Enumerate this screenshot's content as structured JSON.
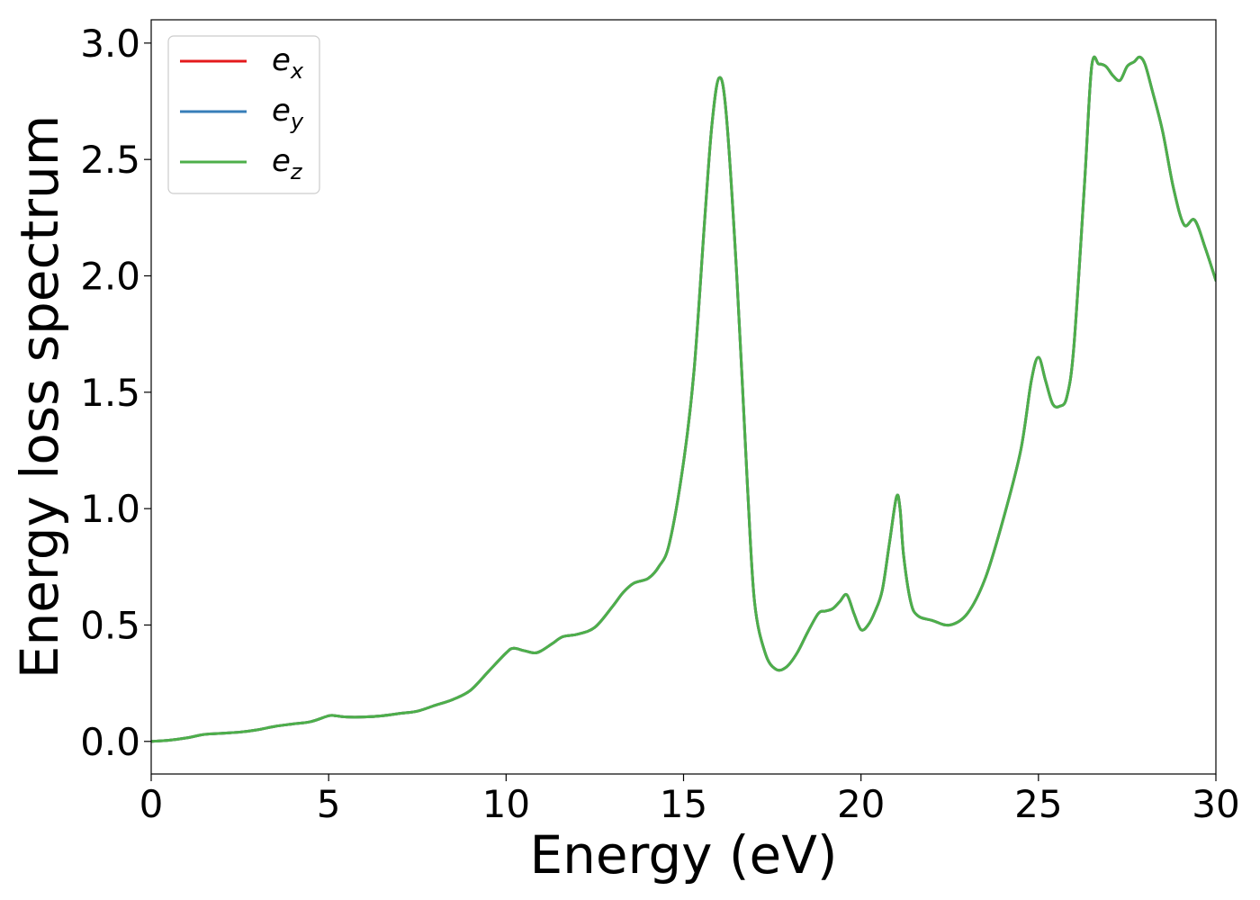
{
  "chart_data": {
    "type": "line",
    "xlabel": "Energy (eV)",
    "ylabel": "Energy loss spectrum",
    "xlim": [
      0,
      30
    ],
    "ylim": [
      -0.14,
      3.1
    ],
    "xticks": [
      0,
      5,
      10,
      15,
      20,
      25,
      30
    ],
    "xtick_labels": [
      "0",
      "5",
      "10",
      "15",
      "20",
      "25",
      "30"
    ],
    "yticks": [
      0.0,
      0.5,
      1.0,
      1.5,
      2.0,
      2.5,
      3.0
    ],
    "ytick_labels": [
      "0.0",
      "0.5",
      "1.0",
      "1.5",
      "2.0",
      "2.5",
      "3.0"
    ],
    "grid": false,
    "legend_position": "top-left",
    "x": [
      0,
      0.5,
      1,
      1.5,
      2,
      2.5,
      3,
      3.5,
      4,
      4.5,
      5,
      5.2,
      5.5,
      6,
      6.5,
      7,
      7.5,
      8,
      8.5,
      9,
      9.5,
      10,
      10.2,
      10.5,
      10.8,
      11,
      11.3,
      11.6,
      12,
      12.5,
      13,
      13.3,
      13.6,
      14,
      14.3,
      14.6,
      15,
      15.3,
      15.6,
      15.8,
      16,
      16.2,
      16.5,
      16.8,
      17,
      17.3,
      17.6,
      17.9,
      18.2,
      18.5,
      18.8,
      19,
      19.2,
      19.4,
      19.6,
      19.8,
      20,
      20.2,
      20.4,
      20.6,
      20.8,
      21,
      21.1,
      21.2,
      21.4,
      21.6,
      22,
      22.5,
      23,
      23.5,
      24,
      24.5,
      24.8,
      25,
      25.2,
      25.4,
      25.6,
      25.8,
      26,
      26.3,
      26.5,
      26.7,
      26.9,
      27.1,
      27.3,
      27.5,
      27.7,
      27.85,
      28,
      28.2,
      28.5,
      28.8,
      29.1,
      29.4,
      29.7,
      30
    ],
    "series": [
      {
        "name": "e_x",
        "values": [
          0.0,
          0.005,
          0.015,
          0.03,
          0.035,
          0.04,
          0.05,
          0.065,
          0.075,
          0.085,
          0.11,
          0.11,
          0.105,
          0.105,
          0.11,
          0.12,
          0.13,
          0.155,
          0.18,
          0.22,
          0.3,
          0.38,
          0.4,
          0.39,
          0.38,
          0.39,
          0.42,
          0.45,
          0.46,
          0.49,
          0.58,
          0.64,
          0.68,
          0.7,
          0.75,
          0.85,
          1.2,
          1.6,
          2.25,
          2.65,
          2.85,
          2.7,
          2.0,
          1.1,
          0.6,
          0.38,
          0.31,
          0.32,
          0.38,
          0.47,
          0.55,
          0.56,
          0.57,
          0.6,
          0.63,
          0.55,
          0.48,
          0.5,
          0.56,
          0.65,
          0.85,
          1.05,
          1.0,
          0.8,
          0.6,
          0.54,
          0.52,
          0.5,
          0.55,
          0.7,
          0.95,
          1.25,
          1.55,
          1.65,
          1.55,
          1.45,
          1.44,
          1.48,
          1.7,
          2.4,
          2.9,
          2.91,
          2.9,
          2.86,
          2.84,
          2.9,
          2.92,
          2.94,
          2.91,
          2.8,
          2.62,
          2.38,
          2.22,
          2.24,
          2.12,
          1.98
        ]
      },
      {
        "name": "e_y",
        "values": [
          0.0,
          0.005,
          0.015,
          0.03,
          0.035,
          0.04,
          0.05,
          0.065,
          0.075,
          0.085,
          0.11,
          0.11,
          0.105,
          0.105,
          0.11,
          0.12,
          0.13,
          0.155,
          0.18,
          0.22,
          0.3,
          0.38,
          0.4,
          0.39,
          0.38,
          0.39,
          0.42,
          0.45,
          0.46,
          0.49,
          0.58,
          0.64,
          0.68,
          0.7,
          0.75,
          0.85,
          1.2,
          1.6,
          2.25,
          2.65,
          2.85,
          2.7,
          2.0,
          1.1,
          0.6,
          0.38,
          0.31,
          0.32,
          0.38,
          0.47,
          0.55,
          0.56,
          0.57,
          0.6,
          0.63,
          0.55,
          0.48,
          0.5,
          0.56,
          0.65,
          0.85,
          1.05,
          1.0,
          0.8,
          0.6,
          0.54,
          0.52,
          0.5,
          0.55,
          0.7,
          0.95,
          1.25,
          1.55,
          1.65,
          1.55,
          1.45,
          1.44,
          1.48,
          1.7,
          2.4,
          2.9,
          2.91,
          2.9,
          2.86,
          2.84,
          2.9,
          2.92,
          2.94,
          2.91,
          2.8,
          2.62,
          2.38,
          2.22,
          2.24,
          2.12,
          1.98
        ]
      },
      {
        "name": "e_z",
        "values": [
          0.0,
          0.005,
          0.015,
          0.03,
          0.035,
          0.04,
          0.05,
          0.065,
          0.075,
          0.085,
          0.11,
          0.11,
          0.105,
          0.105,
          0.11,
          0.12,
          0.13,
          0.155,
          0.18,
          0.22,
          0.3,
          0.38,
          0.4,
          0.39,
          0.38,
          0.39,
          0.42,
          0.45,
          0.46,
          0.49,
          0.58,
          0.64,
          0.68,
          0.7,
          0.75,
          0.85,
          1.2,
          1.6,
          2.25,
          2.65,
          2.85,
          2.7,
          2.0,
          1.1,
          0.6,
          0.38,
          0.31,
          0.32,
          0.38,
          0.47,
          0.55,
          0.56,
          0.57,
          0.6,
          0.63,
          0.55,
          0.48,
          0.5,
          0.56,
          0.65,
          0.85,
          1.05,
          1.0,
          0.8,
          0.6,
          0.54,
          0.52,
          0.5,
          0.55,
          0.7,
          0.95,
          1.25,
          1.55,
          1.65,
          1.55,
          1.45,
          1.44,
          1.48,
          1.7,
          2.4,
          2.9,
          2.91,
          2.9,
          2.86,
          2.84,
          2.9,
          2.92,
          2.94,
          2.91,
          2.8,
          2.62,
          2.38,
          2.22,
          2.24,
          2.12,
          1.98
        ]
      }
    ],
    "legend": [
      {
        "base": "e",
        "sub": "x",
        "color": "#e41a1c"
      },
      {
        "base": "e",
        "sub": "y",
        "color": "#377eb8"
      },
      {
        "base": "e",
        "sub": "z",
        "color": "#4daf4a"
      }
    ]
  }
}
